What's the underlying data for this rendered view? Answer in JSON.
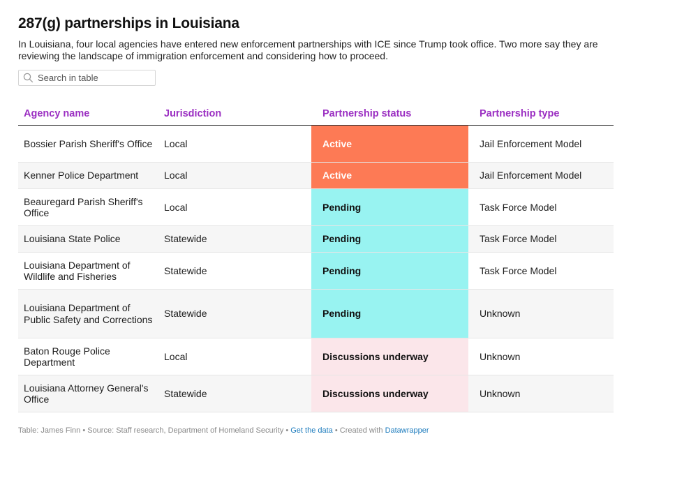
{
  "title": "287(g) partnerships in Louisiana",
  "description": "In Louisiana, four local agencies have entered new enforcement partnerships with ICE since Trump took office. Two more say they are reviewing the landscape of immigration enforcement and considering how to proceed.",
  "search": {
    "placeholder": "Search in table",
    "icon": "search-icon"
  },
  "table": {
    "headers": [
      "Agency name",
      "Jurisdiction",
      "Partnership status",
      "Partnership type"
    ],
    "header_color": "#9b2fc2",
    "status_colors": {
      "Active": "#fd7a55",
      "Pending": "#98f3f1",
      "Discussions underway": "#fbe6ea"
    },
    "rows": [
      {
        "agency": "Bossier Parish Sheriff's Office",
        "jurisdiction": "Local",
        "status": "Active",
        "type": "Jail Enforcement Model"
      },
      {
        "agency": "Kenner Police Department",
        "jurisdiction": "Local",
        "status": "Active",
        "type": "Jail Enforcement Model"
      },
      {
        "agency": "Beauregard Parish Sheriff's Office",
        "jurisdiction": "Local",
        "status": "Pending",
        "type": "Task Force Model"
      },
      {
        "agency": "Louisiana State Police",
        "jurisdiction": "Statewide",
        "status": "Pending",
        "type": "Task Force Model"
      },
      {
        "agency": "Louisiana Department of Wildlife and Fisheries",
        "jurisdiction": "Statewide",
        "status": "Pending",
        "type": "Task Force Model"
      },
      {
        "agency": "Louisiana Department of Public Safety and Corrections",
        "jurisdiction": "Statewide",
        "status": "Pending",
        "type": "Unknown"
      },
      {
        "agency": "Baton Rouge Police Department",
        "jurisdiction": "Local",
        "status": "Discussions underway",
        "type": "Unknown"
      },
      {
        "agency": "Louisiana Attorney General's Office",
        "jurisdiction": "Statewide",
        "status": "Discussions underway",
        "type": "Unknown"
      }
    ]
  },
  "footer": {
    "credit": "Table: James Finn • Source: Staff research, Department of Homeland Security • ",
    "get_data_label": "Get the data",
    "created_with": " • Created with ",
    "datawrapper_label": "Datawrapper"
  }
}
